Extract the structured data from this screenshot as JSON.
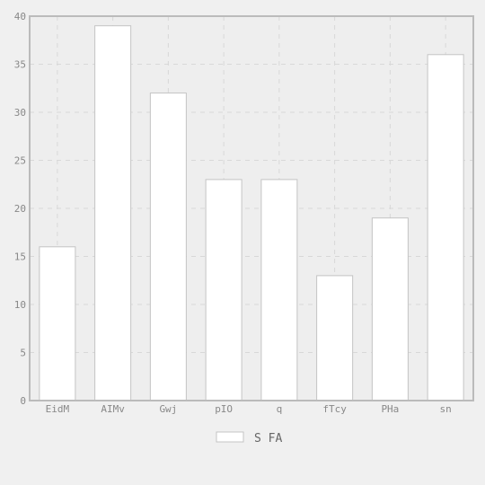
{
  "chart_data": {
    "type": "bar",
    "categories": [
      "EidM",
      "AIMv",
      "Gwj",
      "pIO",
      "q",
      "fTcy",
      "PHa",
      "sn"
    ],
    "series": [
      {
        "name": "S FA",
        "values": [
          16,
          39,
          32,
          23,
          23,
          13,
          19,
          36
        ]
      }
    ],
    "ylim": [
      0,
      40
    ],
    "yticks": [
      0,
      5,
      10,
      15,
      20,
      25,
      30,
      35,
      40
    ],
    "grid": true,
    "legend": "bottom-center",
    "colors": {
      "background": "#f0f0f0",
      "plot_background": "#eeeeee",
      "bar_fill": "#ffffff",
      "bar_stroke": "#c4c4c4",
      "grid": "#d8d8d8",
      "axis": "#bbbbbb"
    }
  }
}
